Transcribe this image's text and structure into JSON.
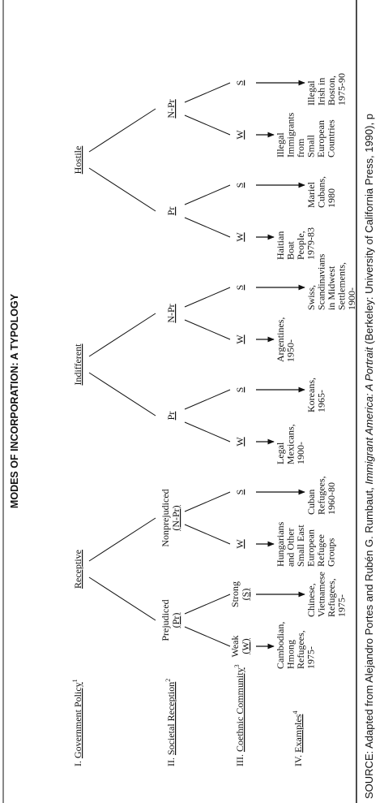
{
  "title": "MODES OF INCORPORATION: A TYPOLOGY",
  "rows": [
    {
      "num": "I.",
      "name": "Government Policy",
      "note": "1"
    },
    {
      "num": "II.",
      "name": "Societal Reception",
      "note": "2"
    },
    {
      "num": "III.",
      "name": "Coethnic Community",
      "note": "3"
    },
    {
      "num": "IV.",
      "name": "Examples",
      "note": "4"
    }
  ],
  "policies": [
    {
      "name": "Receptive",
      "receptions": [
        {
          "lines": [
            "Prejudiced",
            "(Pr)"
          ],
          "communities": [
            {
              "lines": [
                "Weak",
                "(W)"
              ],
              "example": [
                "Cambodian,",
                "Hmong",
                "Refugees,",
                "1975-"
              ]
            },
            {
              "lines": [
                "Strong",
                "(S)"
              ],
              "example": [
                "Chinese,",
                "Vietnamese",
                "Refugees,",
                "1975-"
              ]
            }
          ]
        },
        {
          "lines": [
            "Nonprejudiced",
            "(N-Pr)"
          ],
          "communities": [
            {
              "lines": [
                "W"
              ],
              "example": [
                "Hungarians",
                "and Other",
                "Small East",
                "European",
                "Refugee",
                "Groups"
              ]
            },
            {
              "lines": [
                "S"
              ],
              "example": [
                "Cuban",
                "Refugees,",
                "1960-80"
              ]
            }
          ]
        }
      ]
    },
    {
      "name": "Indifferent",
      "receptions": [
        {
          "lines": [
            "Pr"
          ],
          "communities": [
            {
              "lines": [
                "W"
              ],
              "example": [
                "Legal",
                "Mexicans,",
                "1900-"
              ]
            },
            {
              "lines": [
                "S"
              ],
              "example": [
                "Koreans,",
                "1965-"
              ]
            }
          ]
        },
        {
          "lines": [
            "N-Pr"
          ],
          "communities": [
            {
              "lines": [
                "W"
              ],
              "example": [
                "Argentines,",
                "1950-"
              ]
            },
            {
              "lines": [
                "S"
              ],
              "example": [
                "Swiss,",
                "Scandinavians",
                "in Midwest",
                "Settlements,",
                "1900-"
              ]
            }
          ]
        }
      ]
    },
    {
      "name": "Hostile",
      "receptions": [
        {
          "lines": [
            "Pr"
          ],
          "communities": [
            {
              "lines": [
                "W"
              ],
              "example": [
                "Haitian",
                "Boat",
                "People,",
                "1979-83"
              ]
            },
            {
              "lines": [
                "S"
              ],
              "example": [
                "Mariel",
                "Cubans,",
                "1980"
              ]
            }
          ]
        },
        {
          "lines": [
            "N-Pr"
          ],
          "communities": [
            {
              "lines": [
                "W"
              ],
              "example": [
                "Illegal",
                "Immigrants",
                "from",
                "Small",
                "European",
                "Countries"
              ]
            },
            {
              "lines": [
                "S"
              ],
              "example": [
                "Illegal",
                "Irish in",
                "Boston,",
                "1975-90"
              ]
            }
          ]
        }
      ]
    }
  ],
  "source": {
    "before": "SOURCE: Adapted from Alejandro Portes and Rubén G. Rumbaut, ",
    "italic": "Immigrant America: A Portrait",
    "after": " (Berkeley: University of California Press, 1990), p"
  }
}
